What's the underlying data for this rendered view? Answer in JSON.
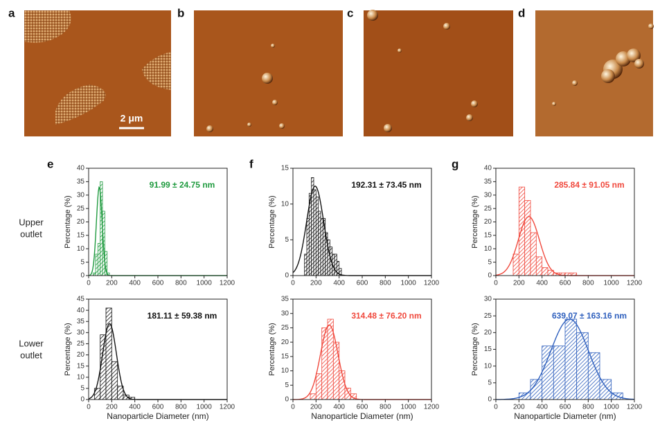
{
  "panel_labels": [
    "a",
    "b",
    "c",
    "d",
    "e",
    "f",
    "g"
  ],
  "row_labels": [
    [
      "Upper",
      "outlet"
    ],
    [
      "Lower",
      "outlet"
    ]
  ],
  "scale_bar": "2 μm",
  "chart_data": [
    {
      "type": "histogram",
      "annotation": "91.99 ± 24.75 nm",
      "ylabel": "Percentage (%)",
      "color": "#1e9a3e",
      "bins": [
        40,
        60,
        80,
        100,
        120,
        140,
        160,
        180
      ],
      "values": [
        1,
        8,
        12,
        35,
        24,
        9,
        1
      ],
      "fit": {
        "mean": 91.99,
        "sd": 24.75,
        "peak": 33
      },
      "xlim": [
        0,
        1200
      ],
      "xticks": [
        0,
        200,
        400,
        600,
        800,
        1000,
        1200
      ],
      "ylim": [
        0,
        40
      ],
      "yticks": [
        0,
        5,
        10,
        15,
        20,
        25,
        30,
        35,
        40
      ]
    },
    {
      "type": "histogram",
      "annotation": "181.11 ± 59.38 nm",
      "ylabel": "Percentage (%)",
      "xlabel": "Nanoparticle Diameter (nm)",
      "color": "#111111",
      "bins": [
        50,
        100,
        150,
        200,
        250,
        300,
        350,
        400
      ],
      "values": [
        5,
        29,
        41,
        17,
        6,
        2,
        1
      ],
      "fit": {
        "mean": 181.11,
        "sd": 59.38,
        "peak": 34
      },
      "xlim": [
        0,
        1200
      ],
      "xticks": [
        0,
        200,
        400,
        600,
        800,
        1000,
        1200
      ],
      "ylim": [
        0,
        45
      ],
      "yticks": [
        0,
        5,
        10,
        15,
        20,
        25,
        30,
        35,
        40,
        45
      ]
    },
    {
      "type": "histogram",
      "annotation": "192.31 ± 73.45 nm",
      "ylabel": "Percentage (%)",
      "color": "#111111",
      "bins": [
        100,
        120,
        140,
        160,
        180,
        200,
        220,
        240,
        260,
        280,
        300,
        320,
        340,
        360,
        380,
        400,
        420
      ],
      "values": [
        3,
        8,
        11.5,
        13.7,
        12,
        11,
        9,
        8,
        8,
        6,
        5,
        4,
        3,
        3,
        2,
        1
      ],
      "fit": {
        "mean": 192.31,
        "sd": 73.45,
        "peak": 12.5
      },
      "xlim": [
        0,
        1200
      ],
      "xticks": [
        0,
        200,
        400,
        600,
        800,
        1000,
        1200
      ],
      "ylim": [
        0,
        15
      ],
      "yticks": [
        0,
        5,
        10,
        15
      ]
    },
    {
      "type": "histogram",
      "annotation": "314.48 ± 76.20 nm",
      "ylabel": "Percentage (%)",
      "xlabel": "Nanoparticle Diameter (nm)",
      "color": "#f0483c",
      "bins": [
        150,
        200,
        250,
        300,
        350,
        400,
        450,
        500,
        550
      ],
      "values": [
        2,
        9,
        25,
        28,
        20,
        10,
        4,
        2
      ],
      "fit": {
        "mean": 314.48,
        "sd": 76.2,
        "peak": 26
      },
      "xlim": [
        0,
        1200
      ],
      "xticks": [
        0,
        200,
        400,
        600,
        800,
        1000,
        1200
      ],
      "ylim": [
        0,
        35
      ],
      "yticks": [
        0,
        5,
        10,
        15,
        20,
        25,
        30,
        35
      ]
    },
    {
      "type": "histogram",
      "annotation": "285.84 ± 91.05 nm",
      "ylabel": "Percentage (%)",
      "color": "#f0483c",
      "bins": [
        150,
        200,
        250,
        300,
        350,
        400,
        450,
        500,
        550,
        600,
        650,
        700
      ],
      "values": [
        8,
        33,
        28,
        16,
        7,
        3,
        2,
        1,
        1,
        1,
        1
      ],
      "fit": {
        "mean": 285.84,
        "sd": 91.05,
        "peak": 22
      },
      "xlim": [
        0,
        1200
      ],
      "xticks": [
        0,
        200,
        400,
        600,
        800,
        1000,
        1200
      ],
      "ylim": [
        0,
        40
      ],
      "yticks": [
        0,
        5,
        10,
        15,
        20,
        25,
        30,
        35,
        40
      ]
    },
    {
      "type": "histogram",
      "annotation": "639.07 ± 163.16 nm",
      "ylabel": "Percentage (%)",
      "xlabel": "Nanoparticle Diameter (nm)",
      "color": "#2e5fbd",
      "bins": [
        200,
        300,
        400,
        500,
        600,
        700,
        800,
        900,
        1000,
        1100
      ],
      "values": [
        2,
        6,
        16,
        16,
        24,
        20,
        14,
        6,
        2
      ],
      "fit": {
        "mean": 639.07,
        "sd": 163.16,
        "peak": 24
      },
      "xlim": [
        0,
        1200
      ],
      "xticks": [
        0,
        200,
        400,
        600,
        800,
        1000,
        1200
      ],
      "ylim": [
        0,
        30
      ],
      "yticks": [
        0,
        5,
        10,
        15,
        20,
        25,
        30
      ]
    }
  ]
}
